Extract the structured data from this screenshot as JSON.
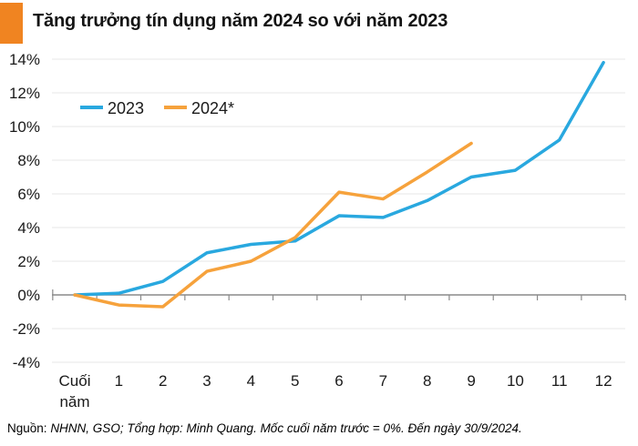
{
  "header": {
    "title": "Tăng trưởng tín dụng năm 2024 so với năm 2023",
    "accent_color": "#F08421"
  },
  "footer": {
    "source_label": "Nguồn:",
    "source_text": "NHNN, GSO; Tổng hợp: Minh Quang. Mốc cuối năm trước = 0%. Đến ngày 30/9/2024."
  },
  "colors": {
    "blue_2023": "#29A8DF",
    "orange_2024": "#F6A23C",
    "gridline": "#e7e7e7",
    "zero_axis": "#8a8a8a",
    "axis_text": "#1a1a1a"
  },
  "chart_data": {
    "type": "line",
    "title": "Tăng trưởng tín dụng năm 2024 so với năm 2023",
    "categories": [
      "Cuối năm",
      "1",
      "2",
      "3",
      "4",
      "5",
      "6",
      "7",
      "8",
      "9",
      "10",
      "11",
      "12"
    ],
    "xlabel": "",
    "ylabel": "",
    "ylim": [
      -4,
      14
    ],
    "y_ticks": [
      14,
      12,
      10,
      8,
      6,
      4,
      2,
      0,
      -2,
      -4
    ],
    "y_tick_suffix": "%",
    "grid": true,
    "legend_position": "top-left",
    "series": [
      {
        "name": "2023",
        "color": "#29A8DF",
        "values": [
          0,
          0.1,
          0.8,
          2.5,
          3.0,
          3.2,
          4.7,
          4.6,
          5.6,
          7.0,
          7.4,
          9.2,
          13.8
        ]
      },
      {
        "name": "2024*",
        "color": "#F6A23C",
        "values": [
          0,
          -0.6,
          -0.7,
          1.4,
          2.0,
          3.4,
          6.1,
          5.7,
          7.3,
          9.0,
          null,
          null,
          null
        ]
      }
    ]
  }
}
